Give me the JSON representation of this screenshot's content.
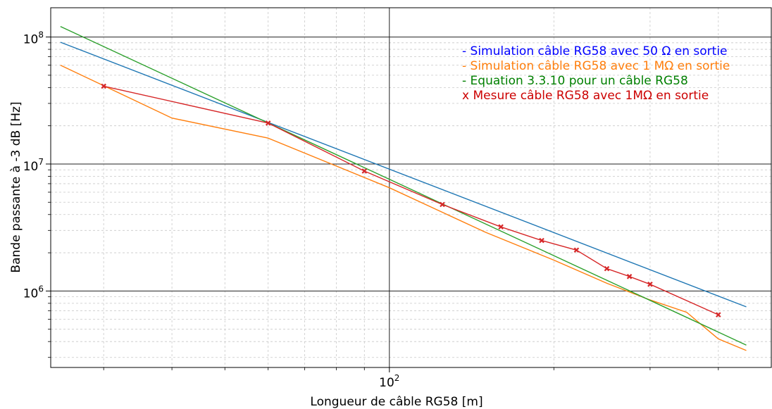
{
  "chart_data": {
    "type": "line",
    "xlabel": "Longueur de câble RG58 [m]",
    "ylabel": "Bande passante à -3 dB [Hz]",
    "x_scale": "log",
    "y_scale": "log",
    "xlim": [
      24,
      500
    ],
    "ylim": [
      250000,
      170000000
    ],
    "x_major_ticks": [
      100
    ],
    "x_major_tick_labels": [
      "10^2"
    ],
    "y_major_ticks": [
      1000000,
      10000000,
      100000000
    ],
    "y_major_tick_labels": [
      "10^6",
      "10^7",
      "10^8"
    ],
    "grid": "major and minor, dashed minor",
    "legend_placement": "top-right",
    "series": [
      {
        "name": "- Simulation câble RG58 avec 50 Ω en sortie",
        "legend_color": "#0000ff",
        "color": "#1f77b4",
        "marker": "none",
        "points": [
          [
            25,
            91000000
          ],
          [
            450,
            750000
          ]
        ]
      },
      {
        "name": "- Simulation câble RG58 avec 1 MΩ en sortie",
        "legend_color": "#ff7f0e",
        "color": "#ff7f0e",
        "marker": "none",
        "points": [
          [
            25,
            60000000
          ],
          [
            40,
            23000000
          ],
          [
            60,
            16000000
          ],
          [
            100,
            6500000
          ],
          [
            150,
            2900000
          ],
          [
            200,
            1750000
          ],
          [
            250,
            1150000
          ],
          [
            300,
            850000
          ],
          [
            350,
            680000
          ],
          [
            400,
            420000
          ],
          [
            450,
            340000
          ]
        ]
      },
      {
        "name": "- Equation 3.3.10 pour un câble RG58",
        "legend_color": "#008000",
        "color": "#2ca02c",
        "marker": "none",
        "points": [
          [
            25,
            121000000
          ],
          [
            450,
            375000
          ]
        ]
      },
      {
        "name": "x Mesure câble RG58 avec 1MΩ en sortie",
        "legend_color": "#cc0000",
        "color": "#d62728",
        "marker": "x",
        "points": [
          [
            30,
            41000000
          ],
          [
            60,
            21000000
          ],
          [
            90,
            8800000
          ],
          [
            125,
            4800000
          ],
          [
            160,
            3200000
          ],
          [
            190,
            2500000
          ],
          [
            220,
            2100000
          ],
          [
            250,
            1500000
          ],
          [
            275,
            1300000
          ],
          [
            300,
            1130000
          ],
          [
            400,
            650000
          ]
        ]
      }
    ]
  }
}
